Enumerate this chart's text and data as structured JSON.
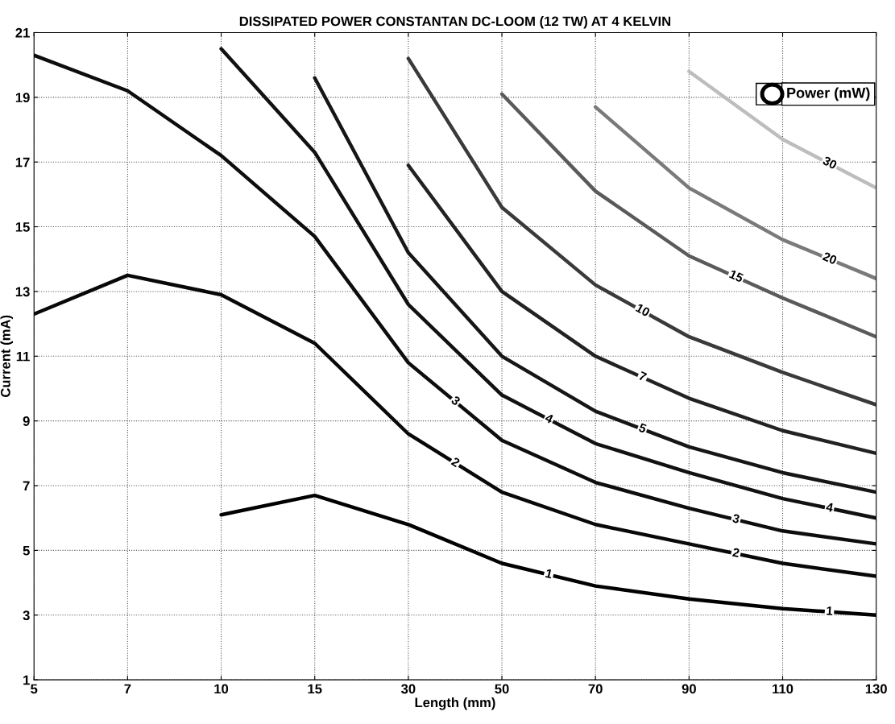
{
  "chart_data": {
    "type": "line",
    "title": "DISSIPATED POWER CONSTANTAN DC-LOOM (12 TW) AT 4 KELVIN",
    "xlabel": "Length (mm)",
    "ylabel": "Current (mA)",
    "legend_title": "Power (mW)",
    "grid": true,
    "line_style": "solid",
    "marker": "none",
    "categories": [
      "5",
      "7",
      "10",
      "15",
      "30",
      "50",
      "70",
      "90",
      "110",
      "130"
    ],
    "ylim": [
      1,
      21
    ],
    "yticks": [
      1,
      3,
      5,
      7,
      9,
      11,
      13,
      15,
      17,
      19,
      21
    ],
    "series": [
      {
        "name": "1",
        "color": "#000000",
        "values": [
          null,
          null,
          6.1,
          6.7,
          5.8,
          4.6,
          3.9,
          3.5,
          3.2,
          3.0
        ]
      },
      {
        "name": "2",
        "color": "#080808",
        "values": [
          12.3,
          13.5,
          12.9,
          11.4,
          8.6,
          6.8,
          5.8,
          5.2,
          4.6,
          4.2
        ]
      },
      {
        "name": "3",
        "color": "#0d0d0d",
        "values": [
          20.3,
          19.2,
          17.2,
          14.7,
          10.8,
          8.4,
          7.1,
          6.3,
          5.6,
          5.2
        ]
      },
      {
        "name": "4",
        "color": "#111111",
        "values": [
          null,
          null,
          20.5,
          17.3,
          12.6,
          9.8,
          8.3,
          7.4,
          6.6,
          6.0
        ]
      },
      {
        "name": "5",
        "color": "#161616",
        "values": [
          null,
          null,
          null,
          19.6,
          14.2,
          11.0,
          9.3,
          8.2,
          7.4,
          6.8
        ]
      },
      {
        "name": "7",
        "color": "#222222",
        "values": [
          null,
          null,
          null,
          null,
          16.9,
          13.0,
          11.0,
          9.7,
          8.7,
          8.0
        ]
      },
      {
        "name": "10",
        "color": "#3a3a3a",
        "values": [
          null,
          null,
          null,
          null,
          20.2,
          15.6,
          13.2,
          11.6,
          10.5,
          9.5
        ]
      },
      {
        "name": "15",
        "color": "#5a5a5a",
        "values": [
          null,
          null,
          null,
          null,
          null,
          19.1,
          16.1,
          14.1,
          12.8,
          11.6
        ]
      },
      {
        "name": "20",
        "color": "#7a7a7a",
        "values": [
          null,
          null,
          null,
          null,
          null,
          null,
          18.7,
          16.2,
          14.6,
          13.4
        ]
      },
      {
        "name": "30",
        "color": "#bdbdbd",
        "values": [
          null,
          null,
          null,
          null,
          null,
          null,
          null,
          19.8,
          17.7,
          16.2
        ]
      }
    ]
  }
}
